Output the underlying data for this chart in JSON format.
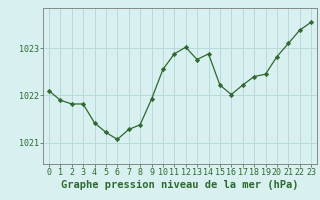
{
  "x": [
    0,
    1,
    2,
    3,
    4,
    5,
    6,
    7,
    8,
    9,
    10,
    11,
    12,
    13,
    14,
    15,
    16,
    17,
    18,
    19,
    20,
    21,
    22,
    23
  ],
  "y": [
    1022.1,
    1021.9,
    1021.82,
    1021.82,
    1021.42,
    1021.22,
    1021.07,
    1021.28,
    1021.38,
    1021.92,
    1022.55,
    1022.88,
    1023.02,
    1022.76,
    1022.88,
    1022.22,
    1022.02,
    1022.22,
    1022.4,
    1022.45,
    1022.82,
    1023.1,
    1023.38,
    1023.55
  ],
  "line_color": "#2d6a2d",
  "marker_color": "#2d6a2d",
  "bg_color": "#d8f0f0",
  "grid_color": "#b8dada",
  "axis_color": "#2d6a2d",
  "border_color": "#888888",
  "xlabel": "Graphe pression niveau de la mer (hPa)",
  "ylim_min": 1020.55,
  "ylim_max": 1023.85,
  "yticks": [
    1021,
    1022,
    1023
  ],
  "xticks": [
    0,
    1,
    2,
    3,
    4,
    5,
    6,
    7,
    8,
    9,
    10,
    11,
    12,
    13,
    14,
    15,
    16,
    17,
    18,
    19,
    20,
    21,
    22,
    23
  ],
  "xlabel_fontsize": 7.5,
  "tick_fontsize": 6.0
}
